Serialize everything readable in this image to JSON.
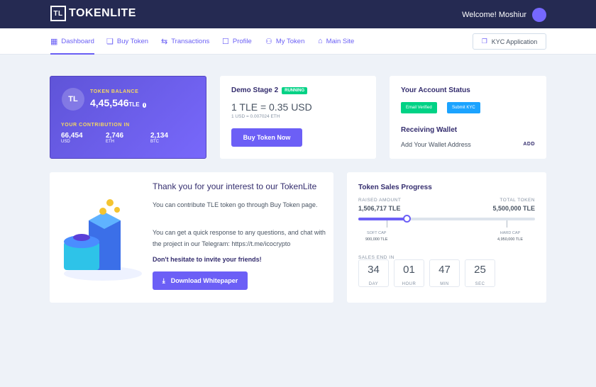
{
  "header": {
    "logo": "TOKENLITE",
    "welcome": "Welcome! Moshiur"
  },
  "nav": {
    "items": [
      {
        "label": "Dashboard",
        "icon": "grid-icon"
      },
      {
        "label": "Buy Token",
        "icon": "coins-icon"
      },
      {
        "label": "Transactions",
        "icon": "swap-icon"
      },
      {
        "label": "Profile",
        "icon": "user-icon"
      },
      {
        "label": "My Token",
        "icon": "tokens-icon"
      },
      {
        "label": "Main Site",
        "icon": "home-icon"
      }
    ],
    "kyc": "KYC Application"
  },
  "balance": {
    "label": "TOKEN BALANCE",
    "value": "4,45,546",
    "unit": "TLE",
    "contribution_label": "YOUR CONTRIBUTION IN",
    "items": [
      {
        "value": "66,454",
        "unit": "USD"
      },
      {
        "value": "2,746",
        "unit": "ETH"
      },
      {
        "value": "2,134",
        "unit": "BTC"
      }
    ]
  },
  "stage": {
    "title": "Demo Stage 2",
    "badge": "RUNNING",
    "price": "1 TLE = 0.35 USD",
    "rate": "1 USD = 0.007024 ETH",
    "button": "Buy Token Now"
  },
  "account": {
    "title": "Your Account Status",
    "email_badge": "Email Verified",
    "kyc_badge": "Submit KYC",
    "wallet_title": "Receiving Wallet",
    "wallet_text": "Add Your Wallet Address",
    "add": "ADD"
  },
  "intro": {
    "title": "Thank you for your interest to our TokenLite",
    "p1": "You can contribute TLE token go through Buy Token page.",
    "p2": "You can get a quick response to any questions, and chat with the project in our Telegram: https://t.me/icocrypto",
    "p3": "Don't hesitate to invite your friends!",
    "button": "Download Whitepaper"
  },
  "sales": {
    "title": "Token Sales Progress",
    "raised_label": "RAISED AMOUNT",
    "raised": "1,506,717 TLE",
    "total_label": "TOTAL TOKEN",
    "total": "5,500,000 TLE",
    "progress_percent": 27.4,
    "soft_cap_label": "SOFT CAP",
    "soft_cap": "900,000 TLE",
    "hard_cap_label": "HARD CAP",
    "hard_cap": "4,950,000 TLE",
    "end_label": "SALES END IN",
    "countdown": [
      {
        "value": "34",
        "unit": "DAY"
      },
      {
        "value": "01",
        "unit": "HOUR"
      },
      {
        "value": "47",
        "unit": "MIN"
      },
      {
        "value": "25",
        "unit": "SEC"
      }
    ]
  },
  "colors": {
    "primary": "#6c5ff6",
    "header": "#252a52",
    "success": "#00d285",
    "info": "#1ba3ff"
  }
}
